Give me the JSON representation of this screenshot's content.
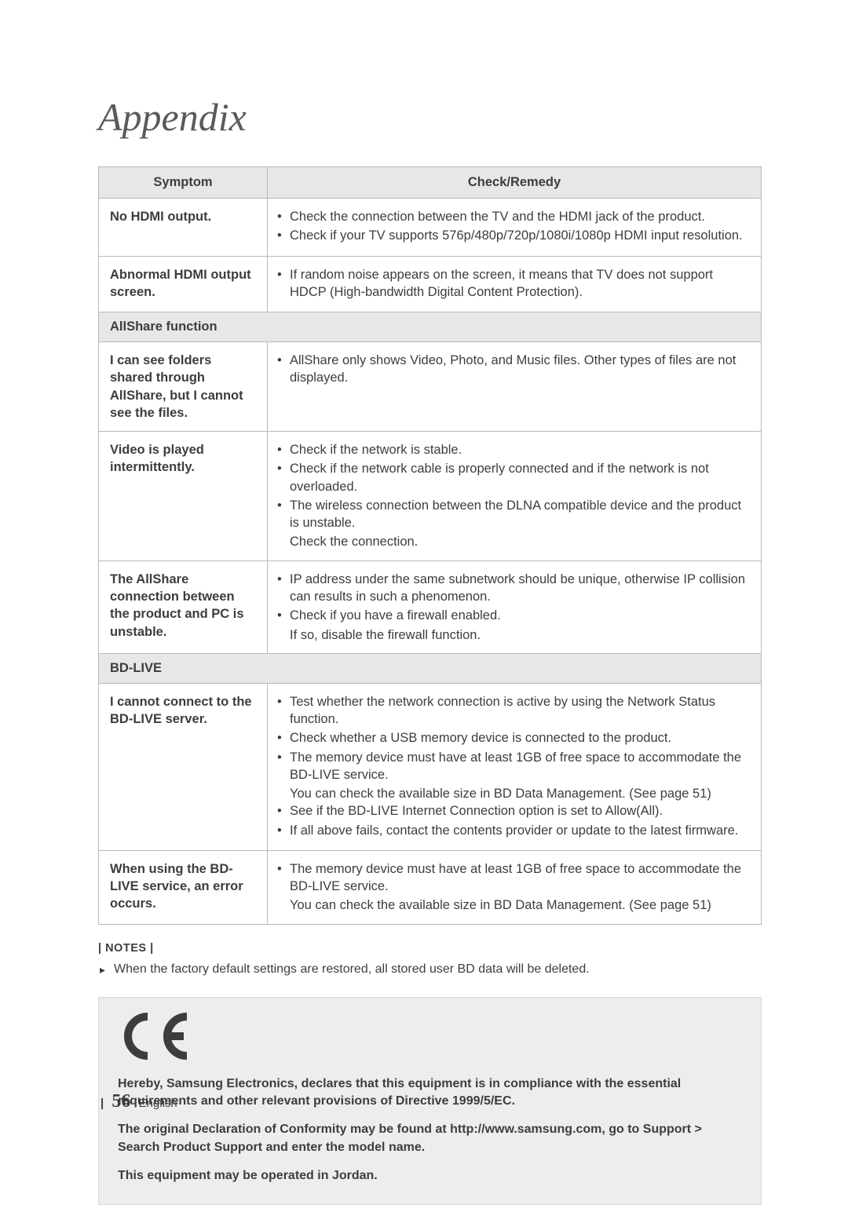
{
  "title": "Appendix",
  "table": {
    "header": {
      "symptom": "Symptom",
      "remedy": "Check/Remedy"
    },
    "rows": [
      {
        "symptom": "No HDMI output.",
        "bullets": [
          "Check the connection between the TV and the HDMI jack of the product.",
          "Check if your TV supports 576p/480p/720p/1080i/1080p HDMI input resolution."
        ]
      },
      {
        "symptom": "Abnormal HDMI output screen.",
        "bullets": [
          "If random noise appears on the screen, it means that TV does not support HDCP (High-bandwidth Digital Content Protection)."
        ]
      },
      {
        "section": "AllShare function"
      },
      {
        "symptom": "I can see folders shared through AllShare, but I cannot see the files.",
        "bullets": [
          "AllShare only shows Video, Photo, and Music files. Other types of files are not displayed."
        ]
      },
      {
        "symptom": "Video is played intermittently.",
        "bullets": [
          "Check if the network is stable.",
          "Check if the network cable is properly connected and if the network is not overloaded.",
          "The wireless connection between the DLNA compatible device and the product is unstable."
        ],
        "trailing": "Check the connection."
      },
      {
        "symptom": "The AllShare connection between the product and PC is unstable.",
        "bullets": [
          "IP address under the same subnetwork should be unique, otherwise IP collision can results in such a phenomenon.",
          "Check if you have a firewall enabled."
        ],
        "trailing": "If so, disable the firewall function."
      },
      {
        "section": "BD-LIVE"
      },
      {
        "symptom": "I cannot connect to the BD-LIVE server.",
        "bullets": [
          "Test whether the network connection is active by using the Network Status function.",
          "Check whether a USB memory device is connected to the product.",
          "The memory device must have at least 1GB of free space to accommodate the BD-LIVE service.",
          "_SUB_You can check the available size in BD Data Management. (See page 51)",
          "See if the BD-LIVE Internet Connection option is set to Allow(All).",
          "If all above fails, contact the contents provider or update to the latest firmware."
        ]
      },
      {
        "symptom": "When using the BD-LIVE service, an error occurs.",
        "bullets": [
          "The memory device must have at least 1GB of free space to accommodate the BD-LIVE service.",
          "_SUB_You can check the available size in BD Data Management. (See page 51)"
        ]
      }
    ]
  },
  "notes": {
    "header": "| NOTES |",
    "line": "When the factory default settings are restored, all stored user BD data will be deleted."
  },
  "compliance": {
    "p1": "Hereby, Samsung Electronics, declares that this equipment is in compliance with the essential requirements and other relevant provisions of Directive 1999/5/EC.",
    "p2": "The original Declaration of Conformity may be found at http://www.samsung.com, go to Support > Search Product Support and enter the model name.",
    "p3": "This equipment may be operated in Jordan."
  },
  "footer": {
    "page": "56",
    "lang": "English"
  },
  "colors": {
    "title": "#5a5a5a",
    "text": "#3d3d3d",
    "header_bg": "#e7e7e7",
    "border": "#b9b9b9",
    "compliance_bg": "#ededed"
  }
}
